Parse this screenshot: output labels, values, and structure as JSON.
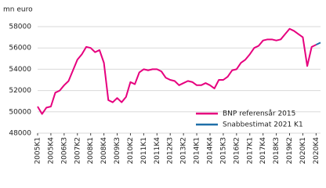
{
  "chart_data": {
    "type": "line",
    "y_label": "mn euro",
    "categories": [
      "2005K1",
      null,
      null,
      "2005K4",
      null,
      null,
      "2006K3",
      null,
      null,
      "2007K2",
      null,
      null,
      "2008K1",
      null,
      null,
      "2008K4",
      null,
      null,
      "2009K3",
      null,
      null,
      "2010K2",
      null,
      null,
      "2011K1",
      null,
      null,
      "2011K4",
      null,
      null,
      "2012K3",
      null,
      null,
      "2013K2",
      null,
      null,
      "2014K1",
      null,
      null,
      "2014K4",
      null,
      null,
      "2015K3",
      null,
      null,
      "2016K2",
      null,
      null,
      "2017K1",
      null,
      null,
      "2017K4",
      null,
      null,
      "2018K3",
      null,
      null,
      "2019K2",
      null,
      null,
      "2020K1",
      null,
      null,
      "2020K4",
      null
    ],
    "series": [
      {
        "name": "BNP referensår 2015",
        "color": "#e6007e",
        "values": [
          50500,
          49800,
          50400,
          50500,
          51800,
          52000,
          52500,
          52900,
          53900,
          54900,
          55400,
          56100,
          56000,
          55600,
          55800,
          54600,
          51100,
          50900,
          51300,
          50900,
          51400,
          52800,
          52600,
          53700,
          54000,
          53900,
          54000,
          54000,
          53800,
          53200,
          53000,
          52900,
          52500,
          52700,
          52900,
          52800,
          52500,
          52500,
          52700,
          52500,
          52200,
          53000,
          53000,
          53300,
          53900,
          54000,
          54600,
          54900,
          55400,
          56000,
          56200,
          56700,
          56800,
          56800,
          56700,
          56800,
          57300,
          57800,
          57600,
          57300,
          57000,
          54300,
          56100,
          56300,
          null
        ]
      },
      {
        "name": "Snabbestimat 2021 K1",
        "color": "#1f6fa8",
        "values": [
          null,
          null,
          null,
          null,
          null,
          null,
          null,
          null,
          null,
          null,
          null,
          null,
          null,
          null,
          null,
          null,
          null,
          null,
          null,
          null,
          null,
          null,
          null,
          null,
          null,
          null,
          null,
          null,
          null,
          null,
          null,
          null,
          null,
          null,
          null,
          null,
          null,
          null,
          null,
          null,
          null,
          null,
          null,
          null,
          null,
          null,
          null,
          null,
          null,
          null,
          null,
          null,
          null,
          null,
          null,
          null,
          null,
          null,
          null,
          null,
          null,
          null,
          null,
          56300,
          56500
        ]
      }
    ],
    "ylim": [
      48000,
      58000
    ],
    "yticks": [
      48000,
      50000,
      52000,
      54000,
      56000,
      58000
    ],
    "grid": true
  }
}
